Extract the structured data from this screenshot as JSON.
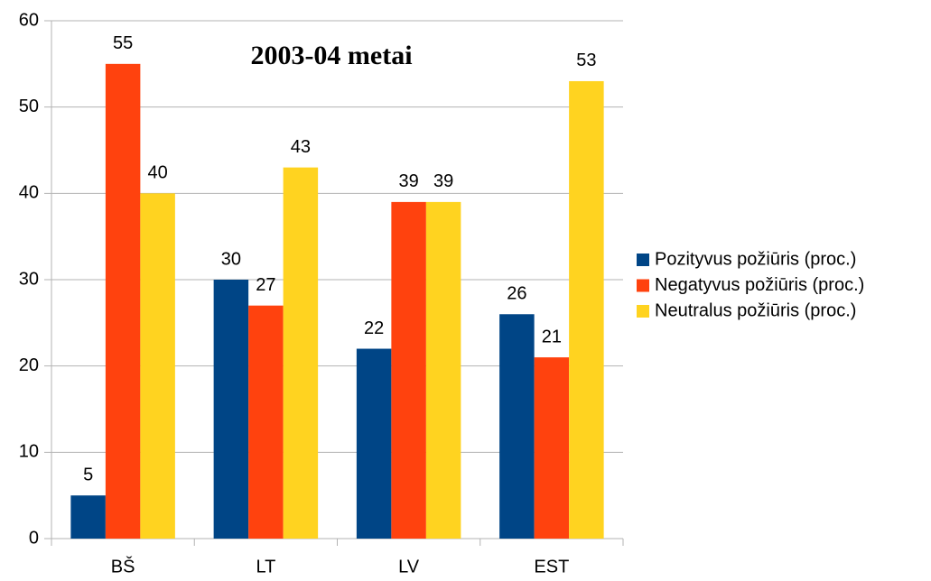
{
  "chart_data": {
    "type": "bar",
    "title": "2003-04 metai",
    "categories": [
      "BŠ",
      "LT",
      "LV",
      "EST"
    ],
    "series": [
      {
        "name": "Pozityvus požiūris (proc.)",
        "color": "#004586",
        "values": [
          5,
          30,
          22,
          26
        ]
      },
      {
        "name": "Negatyvus požiūris (proc.)",
        "color": "#ff420e",
        "values": [
          55,
          27,
          39,
          21
        ]
      },
      {
        "name": "Neutralus požiūris (proc.)",
        "color": "#ffd320",
        "values": [
          40,
          43,
          39,
          53
        ]
      }
    ],
    "ylim": [
      0,
      60
    ],
    "yticks": [
      0,
      10,
      20,
      30,
      40,
      50,
      60
    ],
    "grid": true,
    "legend": "right"
  }
}
